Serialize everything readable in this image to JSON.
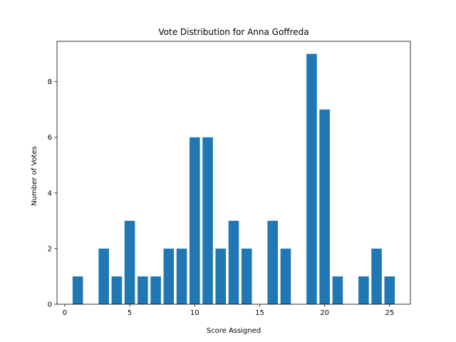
{
  "chart_data": {
    "type": "bar",
    "title": "Vote Distribution for Anna Goffreda",
    "xlabel": "Score Assigned",
    "ylabel": "Number of Votes",
    "x": [
      1,
      3,
      4,
      5,
      6,
      7,
      8,
      9,
      10,
      11,
      12,
      13,
      14,
      16,
      17,
      19,
      20,
      21,
      23,
      24,
      25
    ],
    "values": [
      1,
      2,
      1,
      3,
      1,
      1,
      2,
      2,
      6,
      6,
      2,
      3,
      2,
      3,
      2,
      9,
      7,
      1,
      1,
      2,
      1
    ],
    "xlim": [
      -0.6,
      26.6
    ],
    "ylim": [
      0,
      9.45
    ],
    "xticks": [
      0,
      5,
      10,
      15,
      20,
      25
    ],
    "yticks": [
      0,
      2,
      4,
      6,
      8
    ],
    "bar_width": 0.8,
    "bar_color": "#1f77b4",
    "grid": false,
    "legend": "none"
  }
}
